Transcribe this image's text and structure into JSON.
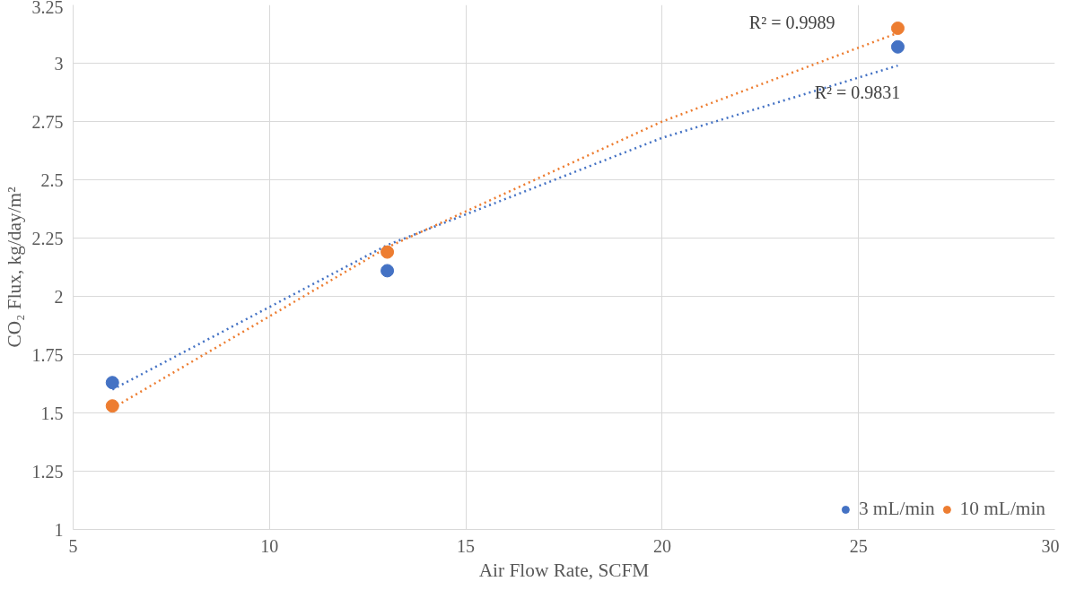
{
  "chart_data": {
    "type": "scatter",
    "xlabel": "Air Flow Rate, SCFM",
    "ylabel": "CO₂ Flux, kg/day/m²",
    "xlim": [
      5,
      30
    ],
    "xticks": [
      5,
      10,
      15,
      20,
      25,
      30
    ],
    "ylim": [
      1,
      3.25
    ],
    "yticks": [
      1,
      {
        "value": 1.25,
        "label": "1.25"
      },
      {
        "value": 1.5,
        "label": "1.5"
      },
      {
        "value": 1.75,
        "label": "1.75"
      },
      2,
      {
        "value": 2.25,
        "label": "2.25"
      },
      {
        "value": 2.5,
        "label": "2.5"
      },
      {
        "value": 2.75,
        "label": "2.75"
      },
      3,
      {
        "value": 3.25,
        "label": "3.25"
      }
    ],
    "grid": true,
    "legend": "bottom right",
    "marker": "circle",
    "series": [
      {
        "type": "line",
        "marker": "none",
        "line_style": "dotted",
        "color": "#4472c4",
        "x": [
          6,
          13,
          20,
          26
        ],
        "values": [
          1.6,
          2.22,
          2.68,
          2.99
        ]
      },
      {
        "type": "line",
        "marker": "none",
        "line_style": "dotted",
        "color": "#ed7d31",
        "x": [
          6,
          13,
          20,
          26
        ],
        "values": [
          1.52,
          2.21,
          2.75,
          3.13
        ]
      },
      {
        "name": "3 mL/min",
        "color": "#4472c4",
        "x": [
          6,
          13,
          26
        ],
        "values": [
          1.63,
          2.11,
          3.07
        ]
      },
      {
        "name": "10 mL/min",
        "color": "#ed7d31",
        "x": [
          6,
          13,
          26
        ],
        "values": [
          1.53,
          2.19,
          3.15
        ]
      }
    ],
    "annotations": [
      "R² = 0.9831",
      "R² = 0.9989"
    ]
  }
}
